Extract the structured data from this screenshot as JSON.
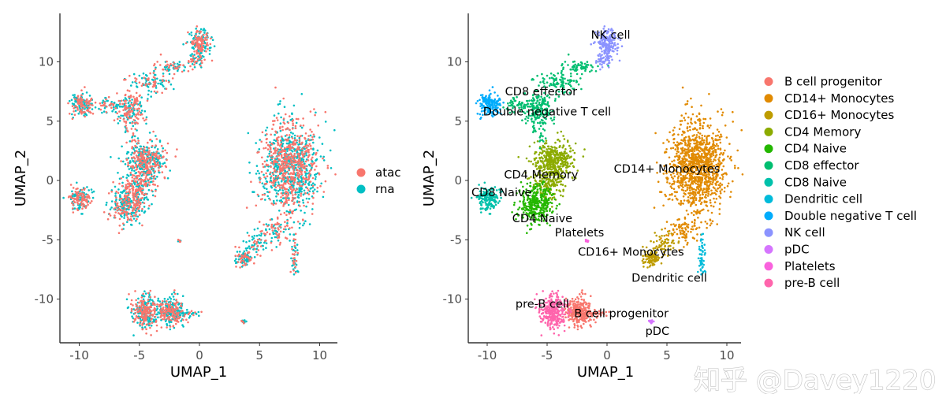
{
  "watermark": "知乎 @Davey1220",
  "chart_data": [
    {
      "type": "scatter",
      "xlabel": "UMAP_1",
      "ylabel": "UMAP_2",
      "xlim": [
        -11.5,
        11.2
      ],
      "ylim": [
        -13.7,
        14
      ],
      "xticks": [
        -10,
        -5,
        0,
        5,
        10
      ],
      "yticks": [
        -10,
        -5,
        0,
        5,
        10
      ],
      "xtick_labels": [
        "-10",
        "-5",
        "0",
        "5",
        "10"
      ],
      "ytick_labels": [
        "-10",
        "-5",
        "0",
        "5",
        "10"
      ],
      "grid": false,
      "legend_position": "right",
      "color_by": "dataset",
      "series": [
        {
          "name": "atac",
          "color": "#F8766D"
        },
        {
          "name": "rna",
          "color": "#00BFC4"
        }
      ]
    },
    {
      "type": "scatter",
      "xlabel": "UMAP_1",
      "ylabel": "UMAP_2",
      "xlim": [
        -11.5,
        11.2
      ],
      "ylim": [
        -13.7,
        14
      ],
      "xticks": [
        -10,
        -5,
        0,
        5,
        10
      ],
      "yticks": [
        -10,
        -5,
        0,
        5,
        10
      ],
      "xtick_labels": [
        "-10",
        "-5",
        "0",
        "5",
        "10"
      ],
      "ytick_labels": [
        "-10",
        "-5",
        "0",
        "5",
        "10"
      ],
      "grid": false,
      "legend_position": "right",
      "color_by": "cell type",
      "series": [
        {
          "name": "B cell progenitor",
          "color": "#F8766D",
          "label_at": [
            1.2,
            -11.2
          ],
          "clusters": [
            {
              "c": [
                -2.3,
                -11
              ],
              "sd": [
                0.55,
                0.6
              ],
              "n": 260
            },
            {
              "c": [
                -0.8,
                -11.2
              ],
              "sd": [
                0.5,
                0.12
              ],
              "n": 30
            }
          ]
        },
        {
          "name": "CD14+ Monocytes",
          "color": "#E18A00",
          "label_at": [
            5,
            1
          ],
          "clusters": [
            {
              "c": [
                7.5,
                1.2
              ],
              "sd": [
                1.2,
                1.9
              ],
              "n": 1100
            },
            {
              "c": [
                6.3,
                -4.2
              ],
              "sd": [
                0.7,
                0.6
              ],
              "n": 80
            }
          ]
        },
        {
          "name": "CD16+ Monocytes",
          "color": "#BE9C00",
          "label_at": [
            2,
            -6
          ],
          "clusters": [
            {
              "c": [
                3.7,
                -6.6
              ],
              "sd": [
                0.35,
                0.35
              ],
              "n": 90
            },
            {
              "c": [
                4.8,
                -5.3
              ],
              "sd": [
                0.6,
                0.5
              ],
              "n": 60
            }
          ]
        },
        {
          "name": "CD4 Memory",
          "color": "#8CAB00",
          "label_at": [
            -5.5,
            0.5
          ],
          "clusters": [
            {
              "c": [
                -4.5,
                1.6
              ],
              "sd": [
                0.9,
                0.8
              ],
              "n": 420
            },
            {
              "c": [
                -4.9,
                -0.5
              ],
              "sd": [
                0.6,
                0.7
              ],
              "n": 120
            }
          ]
        },
        {
          "name": "CD4 Naive",
          "color": "#24B700",
          "label_at": [
            -5.4,
            -3.2
          ],
          "clusters": [
            {
              "c": [
                -5.9,
                -2
              ],
              "sd": [
                0.65,
                0.8
              ],
              "n": 320
            }
          ]
        },
        {
          "name": "CD8 effector",
          "color": "#00BE70",
          "label_at": [
            -5.5,
            7.5
          ],
          "clusters": [
            {
              "c": [
                -5.7,
                5.8
              ],
              "sd": [
                0.5,
                0.9
              ],
              "n": 200
            },
            {
              "c": [
                -4,
                8.3
              ],
              "sd": [
                0.9,
                0.5
              ],
              "n": 100
            },
            {
              "c": [
                -2,
                9.6
              ],
              "sd": [
                0.8,
                0.3
              ],
              "n": 60
            },
            {
              "c": [
                -7.5,
                6.3
              ],
              "sd": [
                0.6,
                0.3
              ],
              "n": 60
            }
          ]
        },
        {
          "name": "CD8 Naive",
          "color": "#00C1AB",
          "label_at": [
            -8.8,
            -1
          ],
          "clusters": [
            {
              "c": [
                -9.9,
                -1.5
              ],
              "sd": [
                0.45,
                0.45
              ],
              "n": 160
            }
          ]
        },
        {
          "name": "Dendritic cell",
          "color": "#00BBDA",
          "label_at": [
            5.2,
            -8.2
          ],
          "clusters": [
            {
              "c": [
                7.9,
                -6.5
              ],
              "sd": [
                0.12,
                0.8
              ],
              "n": 50
            }
          ]
        },
        {
          "name": "Double negative T cell",
          "color": "#00ACFC",
          "label_at": [
            -5,
            5.8
          ],
          "clusters": [
            {
              "c": [
                -9.8,
                6.4
              ],
              "sd": [
                0.45,
                0.45
              ],
              "n": 180
            }
          ]
        },
        {
          "name": "NK cell",
          "color": "#8B93FF",
          "label_at": [
            0.3,
            12.3
          ],
          "clusters": [
            {
              "c": [
                0,
                11.6
              ],
              "sd": [
                0.45,
                0.6
              ],
              "n": 180
            },
            {
              "c": [
                -0.2,
                10.1
              ],
              "sd": [
                0.3,
                0.4
              ],
              "n": 40
            }
          ]
        },
        {
          "name": "pDC",
          "color": "#D575FE",
          "label_at": [
            4.2,
            -12.7
          ],
          "clusters": [
            {
              "c": [
                3.7,
                -11.9
              ],
              "sd": [
                0.1,
                0.1
              ],
              "n": 10
            }
          ]
        },
        {
          "name": "Platelets",
          "color": "#F962DD",
          "label_at": [
            -2.3,
            -4.4
          ],
          "clusters": [
            {
              "c": [
                -1.6,
                -5.1
              ],
              "sd": [
                0.06,
                0.08
              ],
              "n": 6
            }
          ]
        },
        {
          "name": "pre-B cell",
          "color": "#FF65AC",
          "label_at": [
            -5.4,
            -10.4
          ],
          "clusters": [
            {
              "c": [
                -4.5,
                -11
              ],
              "sd": [
                0.55,
                0.7
              ],
              "n": 320
            }
          ]
        }
      ]
    }
  ]
}
